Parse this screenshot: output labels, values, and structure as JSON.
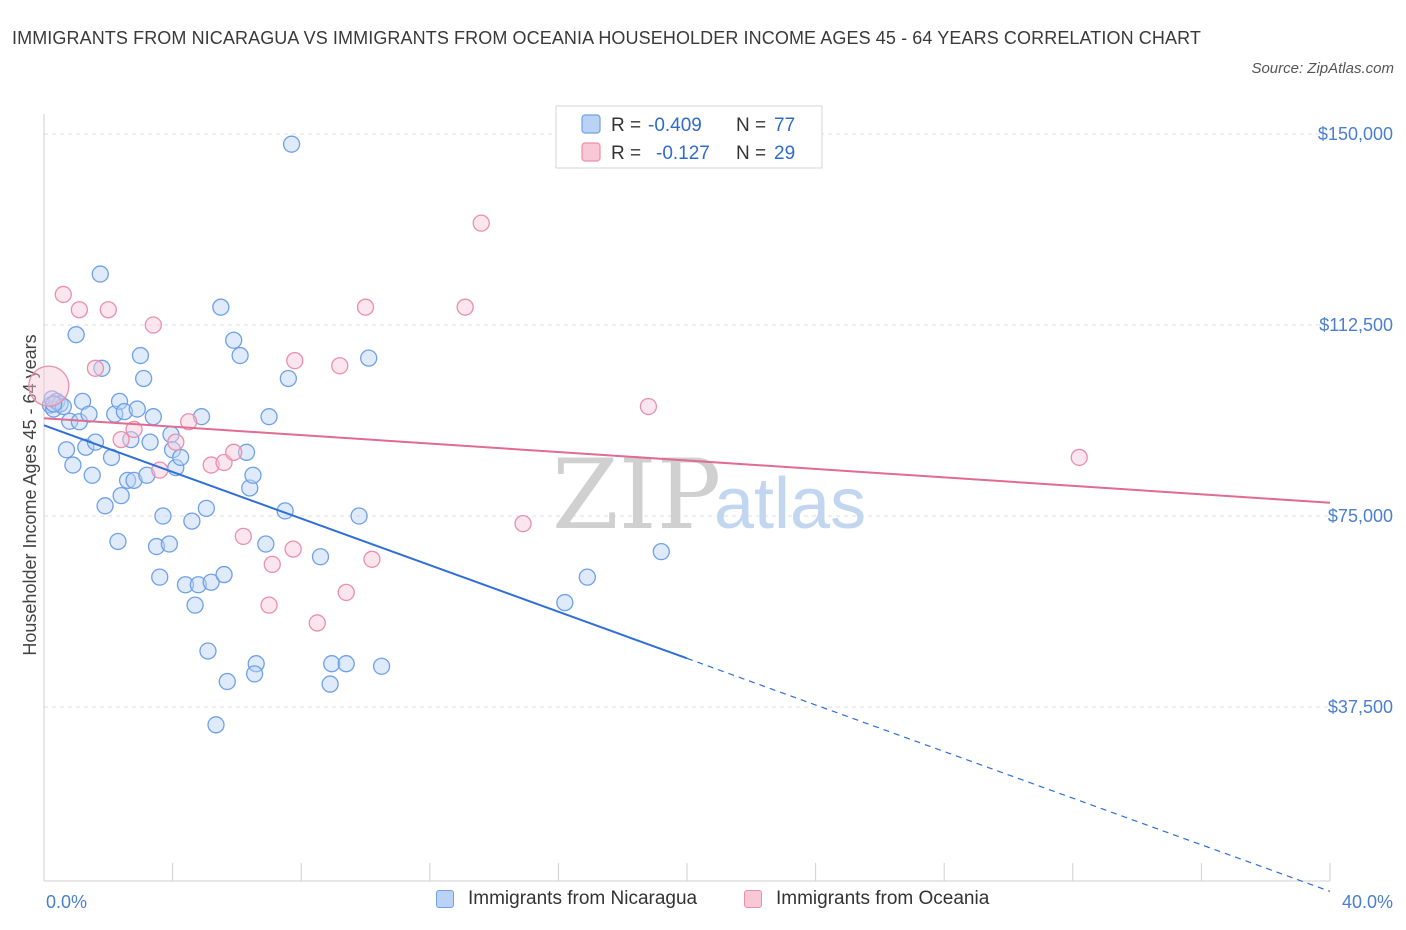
{
  "header": {
    "title": "IMMIGRANTS FROM NICARAGUA VS IMMIGRANTS FROM OCEANIA HOUSEHOLDER INCOME AGES 45 - 64 YEARS CORRELATION CHART",
    "source": "Source: ZipAtlas.com"
  },
  "watermark": {
    "zip": "ZIP",
    "atlas": "atlas"
  },
  "legend": {
    "rows": [
      {
        "r_label": "R =",
        "r_value": "-0.409",
        "n_label": "N =",
        "n_value": "77",
        "color": "#6fa0e8",
        "fill": "#b9d2f5"
      },
      {
        "r_label": "R =",
        "r_value": "-0.127",
        "n_label": "N =",
        "n_value": "29",
        "color": "#ea8fab",
        "fill": "#f8c8d6"
      }
    ]
  },
  "bottom_legend": [
    {
      "label": "Immigrants from Nicaragua",
      "fill": "#b9d2f5",
      "border": "#6fa0e8"
    },
    {
      "label": "Immigrants from Oceania",
      "fill": "#f8c8d6",
      "border": "#ea8fab"
    }
  ],
  "chart_data": {
    "type": "scatter",
    "title": "IMMIGRANTS FROM NICARAGUA VS IMMIGRANTS FROM OCEANIA HOUSEHOLDER INCOME AGES 45 - 64 YEARS CORRELATION CHART",
    "ylabel": "Householder Income Ages 45 - 64 years",
    "xlabel": "",
    "x_tick_labels": [
      "0.0%",
      "40.0%"
    ],
    "y_tick_labels": [
      "$150,000",
      "$112,500",
      "$75,000",
      "$37,500"
    ],
    "y_ticks": [
      150000,
      112500,
      75000,
      37500
    ],
    "xlim": [
      0,
      40
    ],
    "ylim": [
      0,
      150000
    ],
    "grid": true,
    "legend_position": "top-center",
    "series": [
      {
        "name": "Immigrants from Nicaragua",
        "color": "#6fa0e8",
        "fill": "#b9d2f5",
        "r": -0.409,
        "n": 77,
        "trend": {
          "x0": 0,
          "y0": 92800,
          "x1": 40,
          "y1": 1300,
          "solid_until": 20
        },
        "points": [
          [
            0.2,
            96800
          ],
          [
            0.25,
            98000
          ],
          [
            0.3,
            96000
          ],
          [
            0.4,
            97500
          ],
          [
            0.5,
            97000
          ],
          [
            0.6,
            96500
          ],
          [
            0.8,
            93600
          ],
          [
            0.7,
            88000
          ],
          [
            0.9,
            85000
          ],
          [
            1.1,
            93500
          ],
          [
            1.0,
            110600
          ],
          [
            1.2,
            97500
          ],
          [
            1.3,
            88500
          ],
          [
            1.4,
            95000
          ],
          [
            1.5,
            83000
          ],
          [
            1.6,
            89500
          ],
          [
            1.8,
            104000
          ],
          [
            1.75,
            122500
          ],
          [
            1.9,
            77000
          ],
          [
            2.1,
            86500
          ],
          [
            2.2,
            95000
          ],
          [
            2.3,
            70000
          ],
          [
            2.35,
            97500
          ],
          [
            2.4,
            79000
          ],
          [
            2.5,
            95500
          ],
          [
            2.6,
            82000
          ],
          [
            2.7,
            90000
          ],
          [
            2.8,
            82000
          ],
          [
            2.9,
            96000
          ],
          [
            3.0,
            106500
          ],
          [
            3.1,
            102000
          ],
          [
            3.2,
            83000
          ],
          [
            3.3,
            89500
          ],
          [
            3.4,
            94500
          ],
          [
            3.5,
            69000
          ],
          [
            3.6,
            63000
          ],
          [
            3.7,
            75000
          ],
          [
            3.9,
            69500
          ],
          [
            3.95,
            91000
          ],
          [
            4.0,
            88000
          ],
          [
            4.1,
            84500
          ],
          [
            4.25,
            86500
          ],
          [
            4.4,
            61500
          ],
          [
            4.6,
            74000
          ],
          [
            4.7,
            57500
          ],
          [
            4.8,
            61500
          ],
          [
            4.9,
            94500
          ],
          [
            5.05,
            76500
          ],
          [
            5.1,
            48500
          ],
          [
            5.2,
            62000
          ],
          [
            5.35,
            34000
          ],
          [
            5.5,
            116000
          ],
          [
            5.6,
            63500
          ],
          [
            5.7,
            42500
          ],
          [
            5.9,
            109500
          ],
          [
            6.1,
            106500
          ],
          [
            6.3,
            87500
          ],
          [
            6.4,
            80500
          ],
          [
            6.5,
            83000
          ],
          [
            6.6,
            46000
          ],
          [
            6.55,
            44000
          ],
          [
            6.9,
            69500
          ],
          [
            7.0,
            94500
          ],
          [
            7.5,
            76000
          ],
          [
            7.6,
            102000
          ],
          [
            7.7,
            148000
          ],
          [
            8.6,
            67000
          ],
          [
            8.9,
            42000
          ],
          [
            8.95,
            46000
          ],
          [
            9.4,
            46000
          ],
          [
            9.8,
            75000
          ],
          [
            10.1,
            106000
          ],
          [
            10.5,
            45500
          ],
          [
            16.2,
            58000
          ],
          [
            16.9,
            63000
          ],
          [
            19.2,
            68000
          ],
          [
            0.3,
            97000
          ]
        ]
      },
      {
        "name": "Immigrants from Oceania",
        "color": "#ea8fab",
        "fill": "#f8c8d6",
        "r": -0.127,
        "n": 29,
        "trend": {
          "x0": 0,
          "y0": 94200,
          "x1": 40,
          "y1": 77600,
          "solid_until": 40
        },
        "points": [
          [
            0.15,
            100500
          ],
          [
            0.6,
            118500
          ],
          [
            1.1,
            115500
          ],
          [
            1.6,
            104000
          ],
          [
            2.0,
            115500
          ],
          [
            2.4,
            90000
          ],
          [
            2.8,
            92000
          ],
          [
            3.4,
            112500
          ],
          [
            3.6,
            84000
          ],
          [
            4.1,
            89500
          ],
          [
            4.5,
            93500
          ],
          [
            5.2,
            85000
          ],
          [
            5.6,
            85500
          ],
          [
            5.9,
            87500
          ],
          [
            6.2,
            71000
          ],
          [
            7.0,
            57500
          ],
          [
            7.1,
            65500
          ],
          [
            7.8,
            105500
          ],
          [
            7.75,
            68500
          ],
          [
            8.5,
            54000
          ],
          [
            9.2,
            104500
          ],
          [
            9.4,
            60000
          ],
          [
            10.0,
            116000
          ],
          [
            10.2,
            66500
          ],
          [
            13.1,
            116000
          ],
          [
            13.6,
            132500
          ],
          [
            14.9,
            73500
          ],
          [
            18.8,
            96500
          ],
          [
            32.2,
            86500
          ]
        ]
      }
    ]
  }
}
